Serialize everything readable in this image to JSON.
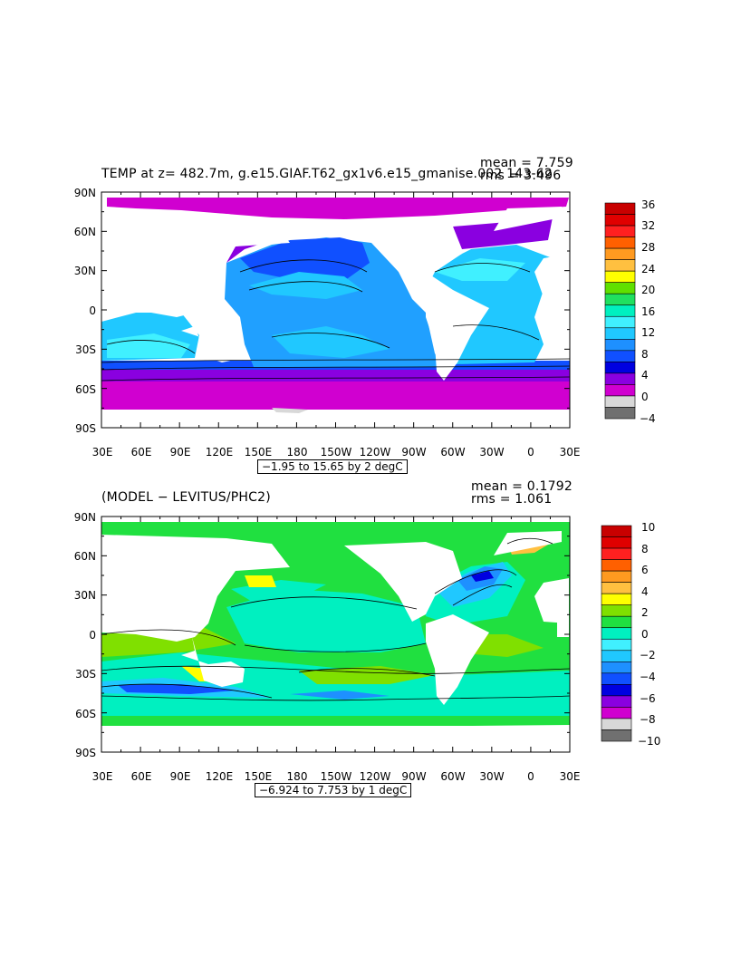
{
  "panel1": {
    "title": "TEMP at z= 482.7m, g.e15.GIAF.T62_gx1v6.e15_gmanise.002 143-62",
    "mean": "mean = 7.759",
    "rms": "rms = 3.496",
    "contour_info": "−1.95 to 15.65 by 2 degC",
    "colorbar_labels": [
      "36",
      "32",
      "28",
      "24",
      "20",
      "16",
      "12",
      "8",
      "4",
      "0",
      "−4"
    ],
    "colorbar_colors": [
      "#c80000",
      "#e00000",
      "#ff2020",
      "#ff6000",
      "#ff9a20",
      "#ffc040",
      "#ffff00",
      "#60e000",
      "#20e060",
      "#00f0c0",
      "#40f0ff",
      "#20c8ff",
      "#1e90ff",
      "#1050ff",
      "#0000e0",
      "#8a00e0",
      "#d000d0",
      "#d8d8d8",
      "#707070"
    ]
  },
  "panel2": {
    "title": "(MODEL − LEVITUS/PHC2)",
    "mean": "mean = 0.1792",
    "rms": "rms = 1.061",
    "contour_info": "−6.924 to 7.753 by 1 degC",
    "colorbar_labels": [
      "10",
      "8",
      "6",
      "4",
      "2",
      "0",
      "−2",
      "−4",
      "−6",
      "−8",
      "−10"
    ],
    "colorbar_colors": [
      "#c80000",
      "#e00000",
      "#ff2020",
      "#ff6000",
      "#ff9a20",
      "#ffc040",
      "#ffff00",
      "#80e000",
      "#20e040",
      "#00f0c0",
      "#40f0ff",
      "#20c8ff",
      "#1e90ff",
      "#1050ff",
      "#0000e0",
      "#8a00e0",
      "#d000d0",
      "#d8d8d8",
      "#707070"
    ]
  },
  "axes": {
    "lat_labels": [
      "90N",
      "60N",
      "30N",
      "0",
      "30S",
      "60S",
      "90S"
    ],
    "lon_labels": [
      "30E",
      "60E",
      "90E",
      "120E",
      "150E",
      "180",
      "150W",
      "120W",
      "90W",
      "60W",
      "30W",
      "0",
      "30E"
    ]
  }
}
